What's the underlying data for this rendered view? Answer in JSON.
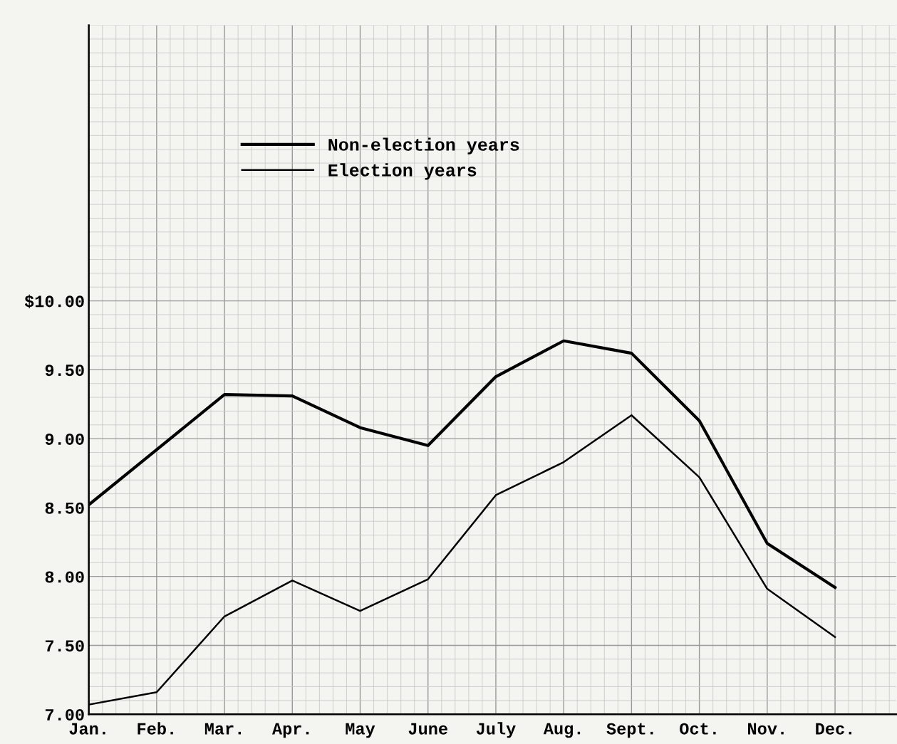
{
  "chart_data": {
    "type": "line",
    "categories": [
      "Jan.",
      "Feb.",
      "Mar.",
      "Apr.",
      "May",
      "June",
      "July",
      "Aug.",
      "Sept.",
      "Oct.",
      "Nov.",
      "Dec."
    ],
    "series": [
      {
        "name": "Non-election years",
        "color": "#000000",
        "values": [
          8.52,
          8.92,
          9.32,
          9.31,
          9.08,
          8.95,
          9.45,
          9.71,
          9.62,
          9.13,
          8.24,
          7.92
        ]
      },
      {
        "name": "Election years",
        "color": "#000000",
        "values": [
          7.07,
          7.16,
          7.71,
          7.97,
          7.75,
          7.98,
          8.59,
          8.83,
          9.17,
          8.72,
          7.91,
          7.56
        ]
      }
    ],
    "ylim": [
      7,
      12
    ],
    "yticks": [
      {
        "value": 7,
        "label": "7.00"
      },
      {
        "value": 7.5,
        "label": "7.50"
      },
      {
        "value": 8,
        "label": "8.00"
      },
      {
        "value": 8.5,
        "label": "8.50"
      },
      {
        "value": 9,
        "label": "9.00"
      },
      {
        "value": 9.5,
        "label": "9.50"
      },
      {
        "value": 10,
        "label": "$10.00"
      }
    ],
    "grid": true,
    "legend": "top left",
    "marker": "none",
    "line_style": "solid"
  }
}
